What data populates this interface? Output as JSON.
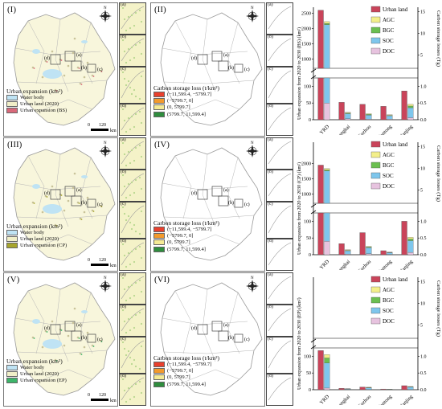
{
  "colors": {
    "urban_land": "#c9445a",
    "agc": "#f3ef8a",
    "bgc": "#6bbf50",
    "soc": "#7ec6ec",
    "doc": "#e7c3df",
    "water": "#bfe3f4",
    "urban2020": "#f1efc8",
    "exp_bs": "#d9697a",
    "exp_cp": "#a7a52d",
    "exp_ep": "#3db56a",
    "loss1": "#e8402d",
    "loss2": "#f39a2c",
    "loss3": "#f5ea95",
    "loss4": "#2f8d3e"
  },
  "map_panels": [
    {
      "label": "(I)",
      "type": "expansion",
      "legend_title": "Urban expansion (km²)",
      "legend_items": [
        "Water body",
        "Urban land (2020)",
        "Urban expansion (BS)"
      ],
      "scale_zero": "0",
      "scale_max": "120",
      "scale_unit": "km",
      "compass": "N"
    },
    {
      "label": "(II)",
      "type": "loss",
      "legend_title": "Carbon storage loss (t/km²)",
      "legend_items": [
        "(−11,599.4, −5799.7]",
        "(−5799.7, 0]",
        "(0, 5799.7]",
        "(5799.7, 11,599.4]"
      ],
      "compass": "N"
    },
    {
      "label": "(III)",
      "type": "expansion",
      "legend_title": "Urban expansion (km²)",
      "legend_items": [
        "Water body",
        "Urban land (2020)",
        "Urban expansion (CP)"
      ],
      "scale_zero": "0",
      "scale_max": "120",
      "scale_unit": "km",
      "compass": "N"
    },
    {
      "label": "(IV)",
      "type": "loss",
      "legend_title": "Carbon storage loss (t/km²)",
      "legend_items": [
        "(−11,599.4, −5799.7]",
        "(−5799.7, 0]",
        "(0, 5799.7]",
        "(5799.7, 11,599.4]"
      ],
      "compass": "N"
    },
    {
      "label": "(V)",
      "type": "expansion",
      "legend_title": "Urban expansion (km²)",
      "legend_items": [
        "Water body",
        "Urban land (2020)",
        "Urban expansion (EP)"
      ],
      "scale_zero": "0",
      "scale_max": "120",
      "scale_unit": "km",
      "compass": "N"
    },
    {
      "label": "(VI)",
      "type": "loss",
      "legend_title": "Carbon storage loss (t/km²)",
      "legend_items": [
        "(−11,599.4, −5799.7]",
        "(−5799.7, 0]",
        "(0, 5799.7]",
        "(5799.7, 11,599.4]"
      ],
      "compass": "N"
    }
  ],
  "inset_labels": [
    "(a)",
    "(b)",
    "(c)",
    "(d)"
  ],
  "map_labels": [
    "(a)",
    "(b)",
    "(c)",
    "(d)"
  ],
  "chart_data": [
    {
      "type": "bar",
      "scenario": "BS",
      "categories": [
        "YRD",
        "Shanghai",
        "Suzhou",
        "Nantong",
        "Nanjing"
      ],
      "legend": [
        "Urban land",
        "AGC",
        "BGC",
        "SOC",
        "DOC"
      ],
      "ylabel_left": "Urban expansion from 2020 to 2030 (BS) (km²)",
      "ylabel_right": "Carbon storage losses (Tg)",
      "urban_land": [
        2600,
        52,
        46,
        40,
        86
      ],
      "carbon": {
        "AGC": [
          0.4,
          0.02,
          0.02,
          0.02,
          0.05
        ],
        "BGC": [
          0.3,
          0.02,
          0.02,
          0.01,
          0.05
        ],
        "SOC": [
          11.5,
          0.15,
          0.12,
          0.1,
          0.3
        ],
        "DOC": [
          0.5,
          0.03,
          0.02,
          0.02,
          0.06
        ]
      },
      "left_ticks_low": [
        "0",
        "50",
        "100"
      ],
      "left_ticks_high": [
        "1000",
        "1500",
        "2000",
        "2500"
      ],
      "right_ticks_low": [
        "0.0",
        "0.5",
        "1.0"
      ],
      "right_ticks_high": [
        "5",
        "10",
        "15"
      ]
    },
    {
      "type": "bar",
      "scenario": "CP",
      "categories": [
        "YRD",
        "Shanghai",
        "Suzhou",
        "Nantong",
        "Nanjing"
      ],
      "legend": [
        "Urban land",
        "AGC",
        "BGC",
        "SOC",
        "DOC"
      ],
      "ylabel_left": "Urban expansion from 2020 to 2030 (CP) (km²)",
      "ylabel_right": "Carbon storage losses (Tg)",
      "urban_land": [
        1950,
        33,
        66,
        12,
        100
      ],
      "carbon": {
        "AGC": [
          0.3,
          0.02,
          0.02,
          0.01,
          0.05
        ],
        "BGC": [
          0.25,
          0.01,
          0.02,
          0.01,
          0.05
        ],
        "SOC": [
          9,
          0.1,
          0.18,
          0.05,
          0.35
        ],
        "DOC": [
          0.4,
          0.02,
          0.03,
          0.01,
          0.07
        ]
      },
      "left_ticks_low": [
        "0",
        "50",
        "100"
      ],
      "left_ticks_high": [
        "1000",
        "1500",
        "2000"
      ],
      "right_ticks_low": [
        "0.0",
        "0.5",
        "1.0"
      ],
      "right_ticks_high": [
        "5",
        "10",
        "15"
      ]
    },
    {
      "type": "bar",
      "scenario": "EP",
      "categories": [
        "YRD",
        "Shanghai",
        "Suzhou",
        "Nantong",
        "Nanjing"
      ],
      "legend": [
        "Urban land",
        "AGC",
        "BGC",
        "SOC",
        "DOC"
      ],
      "ylabel_left": "Urban expansion from 2020 to 2030 (EP) (km²)",
      "ylabel_right": "Carbon storage losses (Tg)",
      "urban_land": [
        117,
        4,
        8,
        2,
        12
      ],
      "carbon": {
        "AGC": [
          0.1,
          0.005,
          0.01,
          0.002,
          0.01
        ],
        "BGC": [
          0.15,
          0.005,
          0.01,
          0.002,
          0.01
        ],
        "SOC": [
          0.75,
          0.02,
          0.05,
          0.01,
          0.07
        ],
        "DOC": [
          0.05,
          0.002,
          0.005,
          0.001,
          0.007
        ]
      },
      "left_ticks_low": [
        "0",
        "50",
        "100"
      ],
      "left_ticks_high": [
        "",
        "",
        ""
      ],
      "right_ticks_low": [
        "0.0",
        "0.5",
        "1.0"
      ],
      "right_ticks_high": [
        "5",
        "10",
        "15"
      ]
    }
  ]
}
